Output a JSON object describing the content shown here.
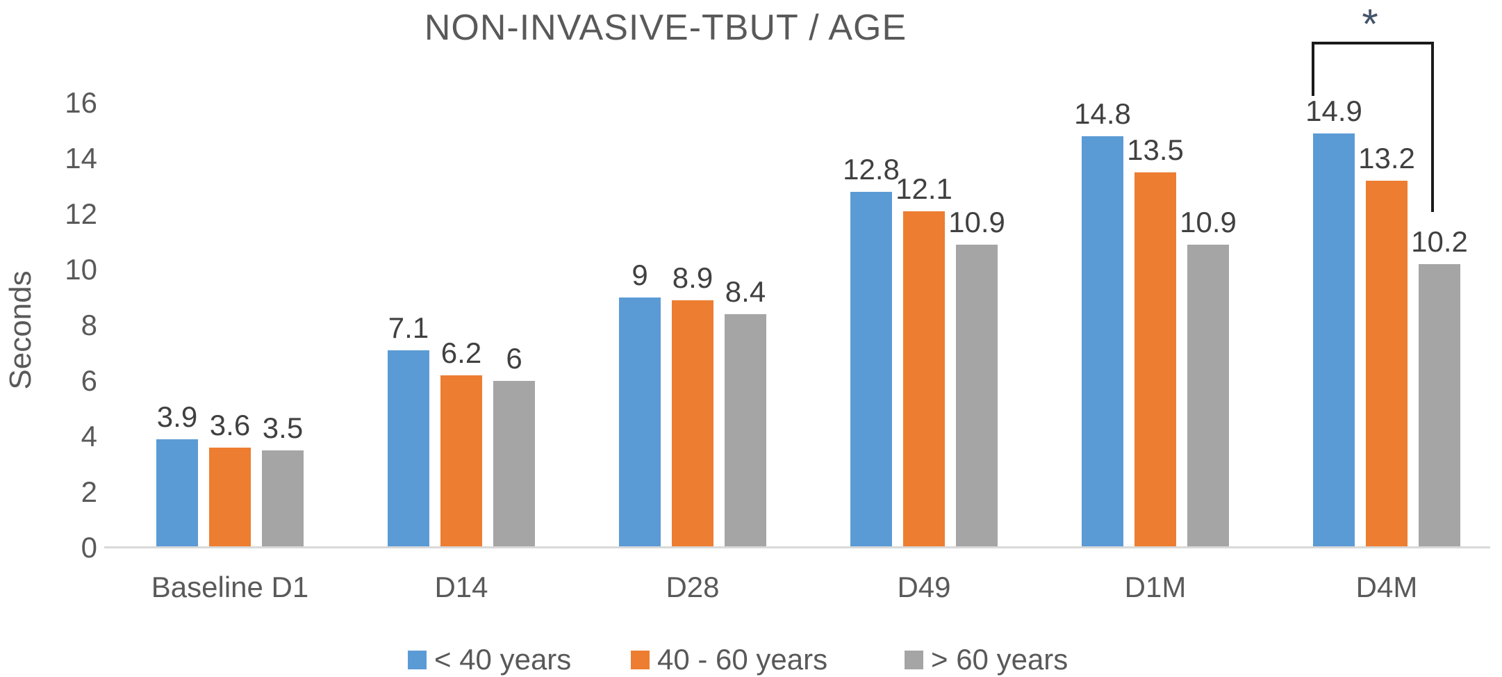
{
  "chart_data": {
    "type": "bar",
    "title": "NON-INVASIVE-TBUT / AGE",
    "ylabel": "Seconds",
    "xlabel": "",
    "ylim": [
      0,
      16
    ],
    "yticks": [
      16,
      14,
      12,
      10,
      8,
      6,
      4,
      2,
      0
    ],
    "grid": false,
    "legend_position": "bottom",
    "categories": [
      "Baseline D1",
      "D14",
      "D28",
      "D49",
      "D1M",
      "D4M"
    ],
    "series": [
      {
        "name": "< 40 years",
        "color": "#5B9BD5",
        "values": [
          3.9,
          7.1,
          9,
          12.8,
          14.8,
          14.9
        ]
      },
      {
        "name": "40 - 60 years",
        "color": "#ED7D31",
        "values": [
          3.6,
          6.2,
          8.9,
          12.1,
          13.5,
          13.2
        ]
      },
      {
        "name": "> 60 years",
        "color": "#A5A5A5",
        "values": [
          3.5,
          6,
          8.4,
          10.9,
          10.9,
          10.2
        ]
      }
    ],
    "annotation": {
      "symbol": "*",
      "category": "D4M",
      "between": [
        "< 40 years",
        "> 60 years"
      ]
    }
  },
  "colors": {
    "axis_line": "#d9d9d9",
    "text": "#595959",
    "value_label": "#404040",
    "bracket": "#1a1a1a",
    "asterisk": "#44546A"
  }
}
